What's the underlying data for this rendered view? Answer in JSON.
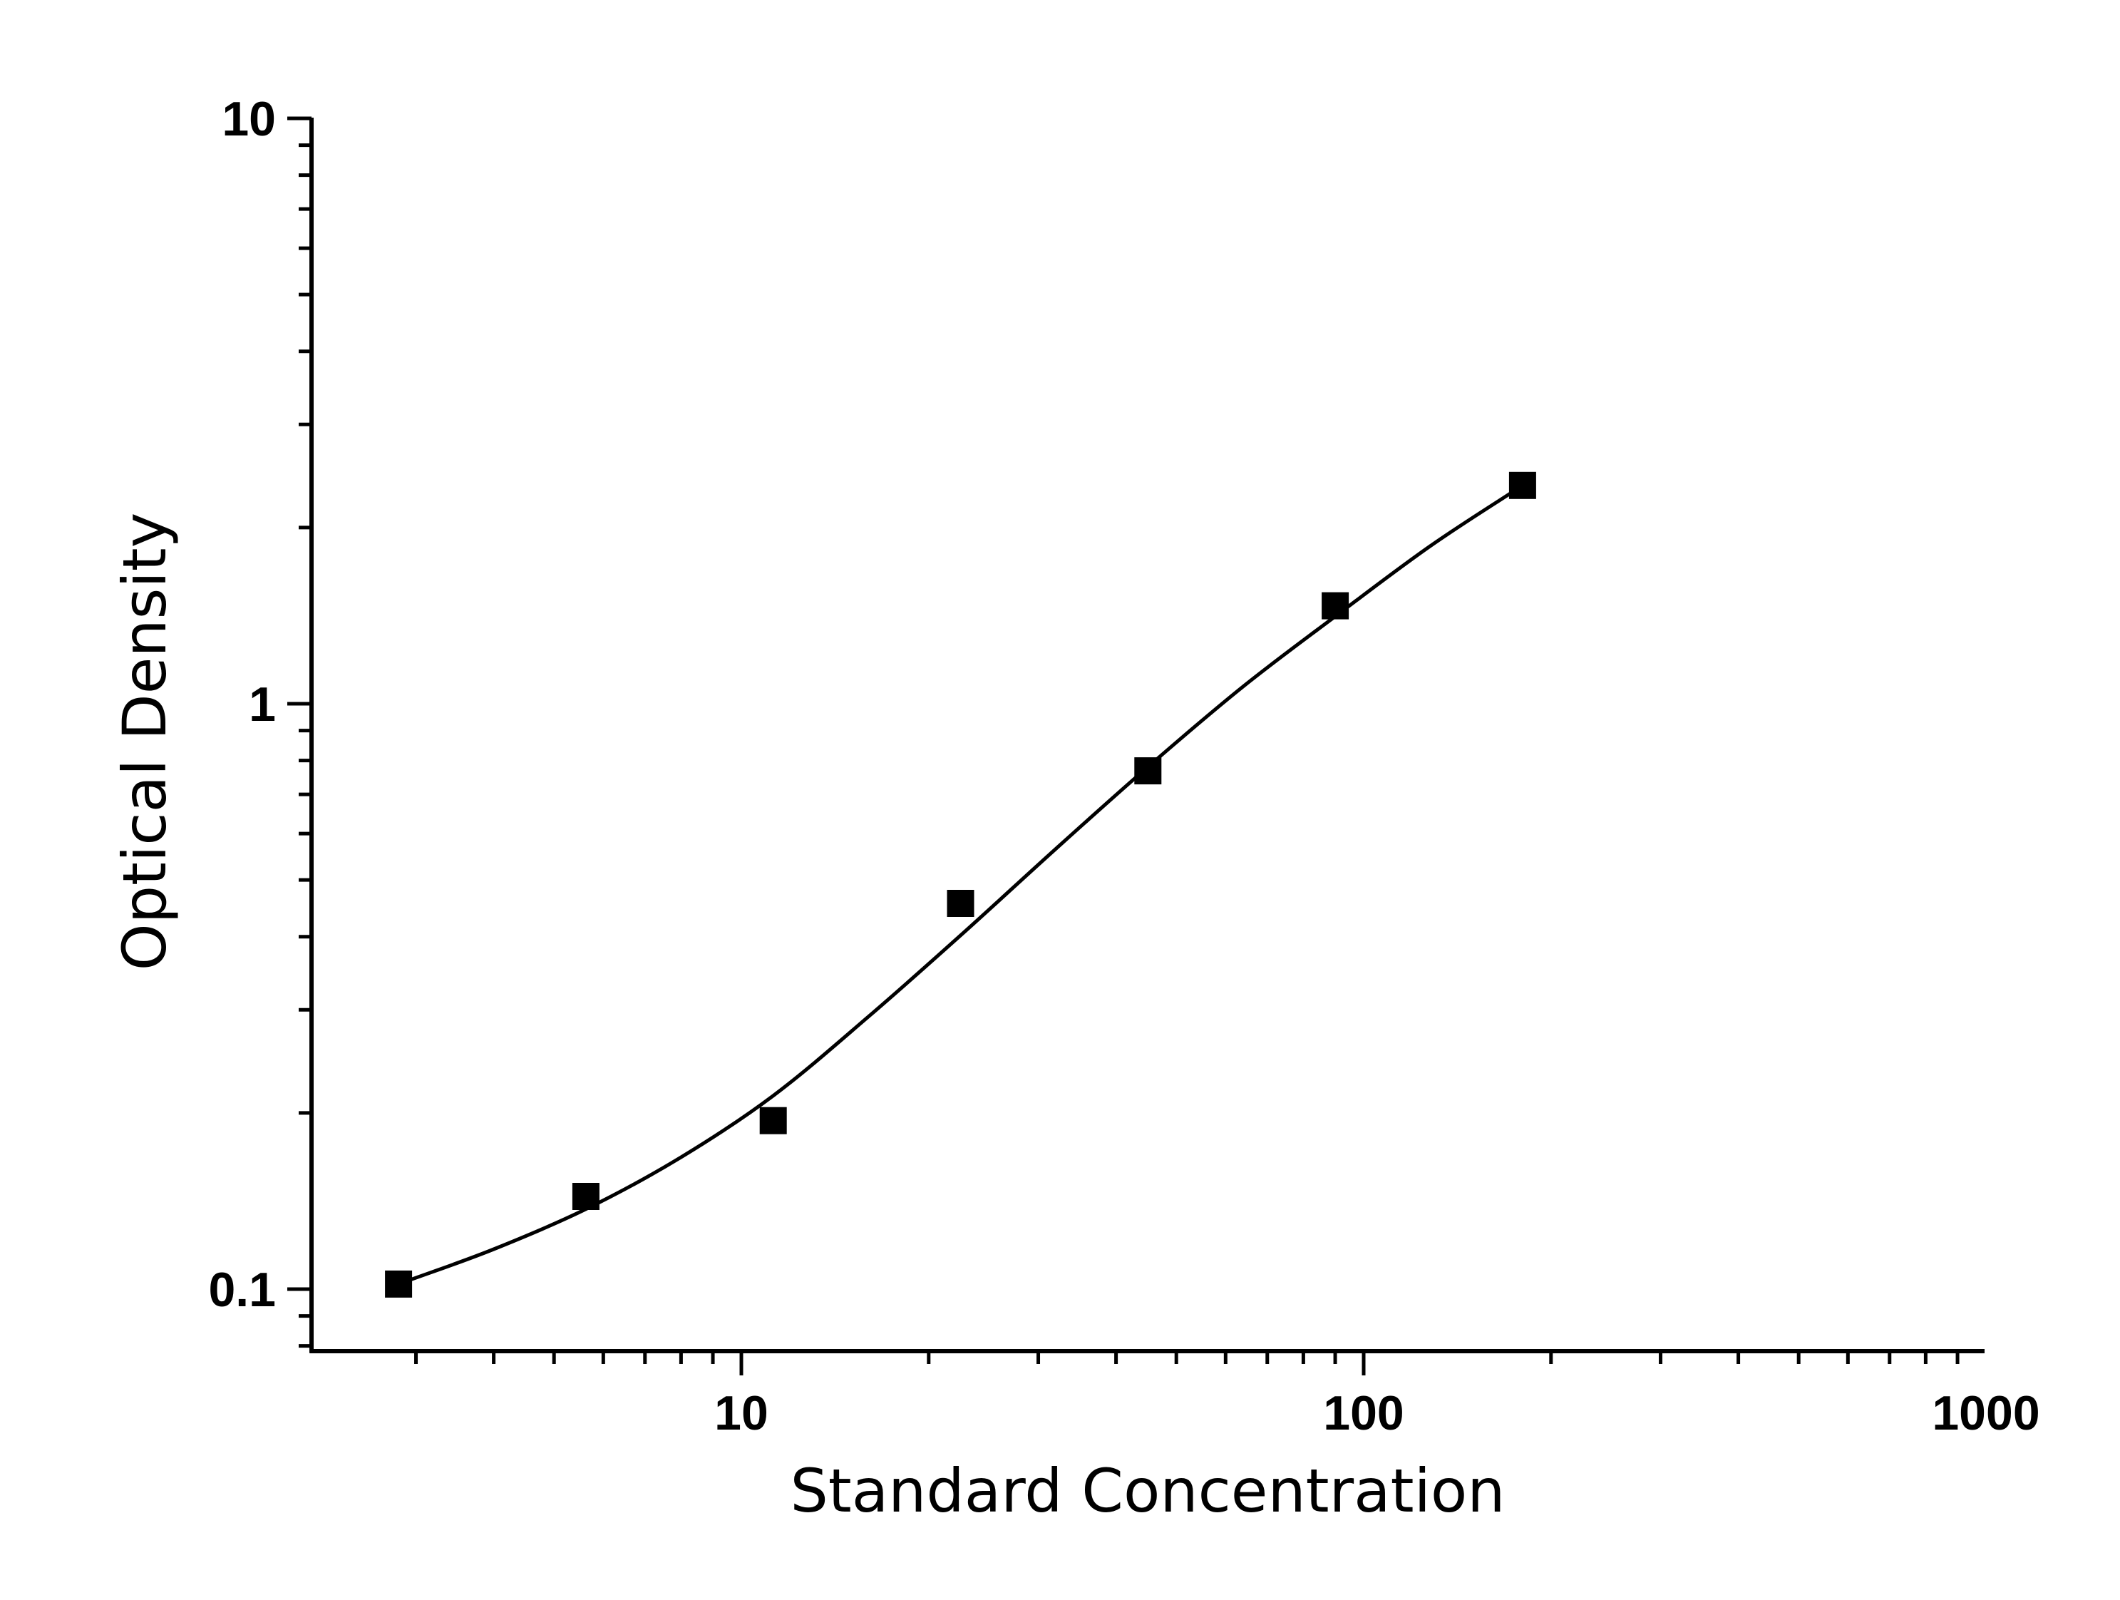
{
  "chart_data": {
    "type": "scatter",
    "title": "",
    "xlabel": "Standard Concentration",
    "ylabel": "Optical Density",
    "x_scale": "log",
    "y_scale": "log",
    "xlim": [
      2,
      1000
    ],
    "ylim": [
      0.08,
      10
    ],
    "x_tick_labels": [
      "10",
      "100",
      "1000"
    ],
    "y_tick_labels": [
      "0.1",
      "1",
      "10"
    ],
    "grid": false,
    "legend": "none",
    "marker": "square",
    "colors": {
      "marker": "#000000",
      "curve": "#000000",
      "axes": "#000000"
    },
    "series": [
      {
        "x": [
          2.8125,
          5.625,
          11.25,
          22.5,
          45,
          90,
          180
        ],
        "y": [
          0.102,
          0.144,
          0.194,
          0.456,
          0.768,
          1.47,
          2.36
        ]
      }
    ],
    "fit_curve": {
      "model": "4PL",
      "x": [
        2.8125,
        4,
        5.625,
        8,
        11.25,
        16,
        22.5,
        32,
        45,
        64,
        90,
        128,
        180
      ],
      "y": [
        0.102,
        0.117,
        0.137,
        0.168,
        0.214,
        0.292,
        0.402,
        0.565,
        0.78,
        1.07,
        1.41,
        1.86,
        2.36
      ]
    }
  }
}
